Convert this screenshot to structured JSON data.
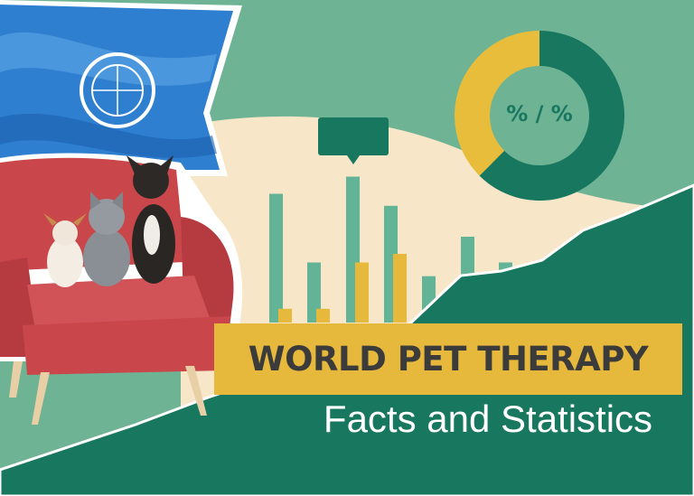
{
  "title": "WORLD PET THERAPY",
  "subtitle": "Facts and Statistics",
  "donut": {
    "label": "% / %",
    "segments": [
      {
        "share": 62.5,
        "color": "#17775f"
      },
      {
        "share": 37.5,
        "color": "#e8bd3c"
      }
    ]
  },
  "bars": {
    "green": [
      0.75,
      0.35,
      0.85,
      0.68,
      0.27,
      0.5,
      0.35,
      0.5
    ],
    "yellow": [
      0.08,
      0.08,
      0.35,
      0.4
    ]
  },
  "colors": {
    "background": "#6fb395",
    "cream": "#f8e6c8",
    "dark_green": "#17775f",
    "yellow": "#e6b83c",
    "chair": "#c9474b",
    "flag": "#2f7fd0"
  },
  "icons": [
    "un-flag-emblem",
    "armchair",
    "chihuahua",
    "kitten",
    "french-bulldog",
    "speech-bubble"
  ]
}
